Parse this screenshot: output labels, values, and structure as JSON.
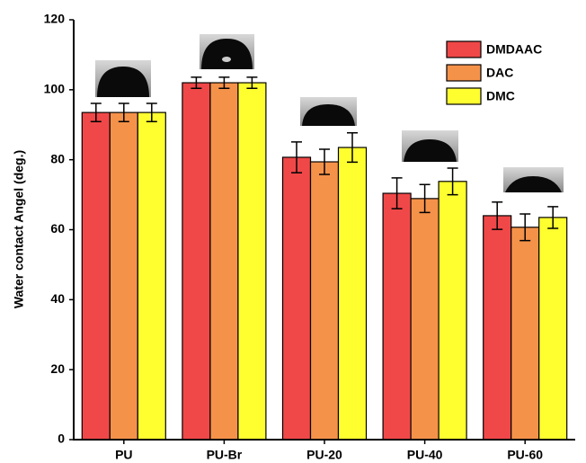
{
  "chart_data": {
    "type": "bar",
    "y_label": "Water contact Angel (deg.)",
    "categories": [
      "PU",
      "PU-Br",
      "PU-20",
      "PU-40",
      "PU-60"
    ],
    "series": [
      {
        "name": "DMDAAC",
        "color": "#f04848",
        "values": [
          93.5,
          102,
          80.7,
          70.4,
          64
        ],
        "errors": [
          2.6,
          1.6,
          4.4,
          4.4,
          3.9
        ]
      },
      {
        "name": "DAC",
        "color": "#f5924a",
        "values": [
          93.5,
          102,
          79.4,
          68.9,
          60.7
        ],
        "errors": [
          2.6,
          1.6,
          3.6,
          4,
          3.8
        ]
      },
      {
        "name": "DMC",
        "color": "#ffff30",
        "values": [
          93.5,
          102,
          83.5,
          73.8,
          63.5
        ],
        "errors": [
          2.6,
          1.6,
          4.2,
          3.8,
          3.1
        ]
      }
    ],
    "ylim": [
      0,
      120
    ],
    "yticks": [
      0,
      20,
      40,
      60,
      80,
      100,
      120
    ],
    "legend": "upper right"
  }
}
